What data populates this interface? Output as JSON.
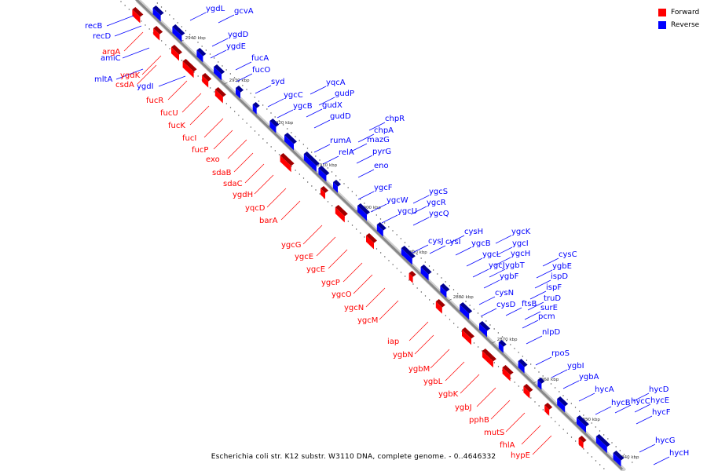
{
  "colors": {
    "forward": "#ff0000",
    "reverse": "#0000ff",
    "backbone": "#888888"
  },
  "legend": [
    {
      "label": "Forward",
      "color": "#ff0000"
    },
    {
      "label": "Reverse",
      "color": "#0000ff"
    }
  ],
  "caption": "Escherichia coli str. K12 substr. W3110 DNA, complete genome. - 0..4646332",
  "ticks": [
    "2940 kbp",
    "2930 kbp",
    "2920 kbp",
    "2910 kbp",
    "2900 kbp",
    "2890 kbp",
    "2880 kbp",
    "2870 kbp",
    "2860 kbp",
    "2850 kbp",
    "2840 kbp"
  ],
  "reverse_genes": [
    "ygdL",
    "gcvA",
    "ygdD",
    "ygdE",
    "fucA",
    "fucO",
    "syd",
    "yqcA",
    "ygcC",
    "gudP",
    "ygcB",
    "gudX",
    "gudD",
    "chpR",
    "chpA",
    "rumA",
    "mazG",
    "relA",
    "pyrG",
    "eno",
    "ygcF",
    "ygcS",
    "ygcW",
    "ygcR",
    "ygcU",
    "ygcQ",
    "cysH",
    "ygcK",
    "cysJ",
    "cysI",
    "ygcB",
    "ygcI",
    "ygcL",
    "ygcH",
    "ygcJ",
    "ygbT",
    "ygbF",
    "cysC",
    "ygbE",
    "ispD",
    "cysN",
    "ispF",
    "ftsB",
    "truD",
    "cysD",
    "surE",
    "pcm",
    "nlpD",
    "rpoS",
    "ygbI",
    "ygbA",
    "hycA",
    "hycD",
    "hycB",
    "hycC",
    "hycE",
    "hycF",
    "hycG",
    "hycH",
    "recB",
    "recD",
    "amiC",
    "mltA",
    "ygdI"
  ],
  "forward_genes": [
    "argA",
    "ygdK",
    "csdA",
    "fucR",
    "fucU",
    "fucK",
    "fucI",
    "fucP",
    "exo",
    "sdaB",
    "sdaC",
    "ygdH",
    "yqcD",
    "barA",
    "ygcG",
    "ygcE",
    "ygcE",
    "ygcP",
    "ygcO",
    "ygcN",
    "ygcM",
    "iap",
    "ygbN",
    "ygbM",
    "ygbL",
    "ygbK",
    "ygbJ",
    "pphB",
    "mutS",
    "fhlA",
    "hypE"
  ]
}
